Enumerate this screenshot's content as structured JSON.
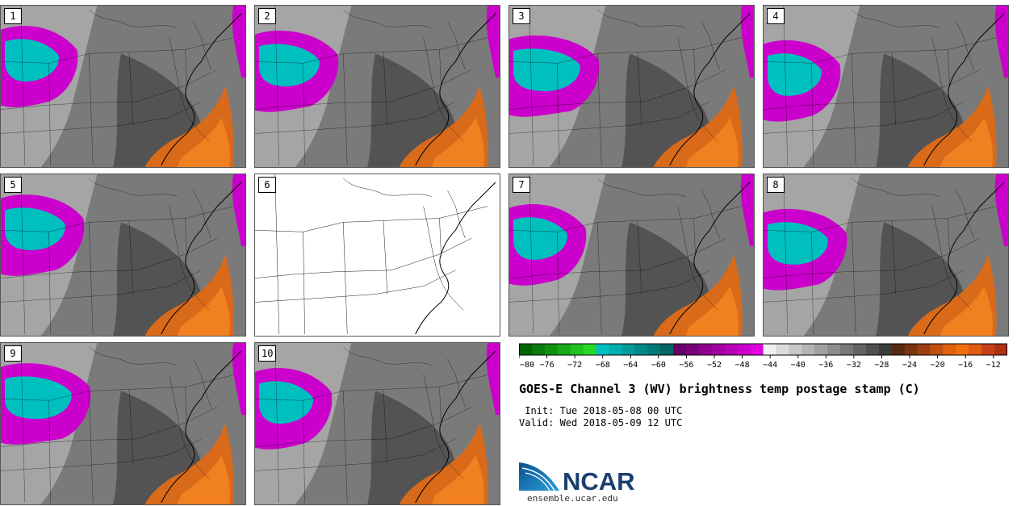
{
  "title": "GOES-E Channel 3 (WV) brightness temp postage stamp (C)",
  "init": " Init: Tue 2018-05-08 00 UTC",
  "valid": "Valid: Wed 2018-05-09 12 UTC",
  "logo_text": "NCAR",
  "logo_url": "ensemble.ucar.edu",
  "panels": [
    {
      "label": "1",
      "has_data": true,
      "icon": "satellite-image"
    },
    {
      "label": "2",
      "has_data": true,
      "icon": "satellite-image"
    },
    {
      "label": "3",
      "has_data": true,
      "icon": "satellite-image"
    },
    {
      "label": "4",
      "has_data": true,
      "icon": "satellite-image"
    },
    {
      "label": "5",
      "has_data": true,
      "icon": "satellite-image"
    },
    {
      "label": "6",
      "has_data": false,
      "icon": "blank-map"
    },
    {
      "label": "7",
      "has_data": true,
      "icon": "satellite-image"
    },
    {
      "label": "8",
      "has_data": true,
      "icon": "satellite-image"
    },
    {
      "label": "9",
      "has_data": true,
      "icon": "satellite-image"
    },
    {
      "label": "10",
      "has_data": true,
      "icon": "satellite-image"
    }
  ],
  "colorbar": {
    "min": -80,
    "max": -10,
    "step": 2,
    "tick_labels": [
      "−80",
      "−76",
      "−72",
      "−68",
      "−64",
      "−60",
      "−56",
      "−52",
      "−48",
      "−44",
      "−40",
      "−36",
      "−32",
      "−28",
      "−24",
      "−20",
      "−16",
      "−12"
    ],
    "tick_values": [
      -80,
      -76,
      -72,
      -68,
      -64,
      -60,
      -56,
      -52,
      -48,
      -44,
      -40,
      -36,
      -32,
      -28,
      -24,
      -20,
      -16,
      -12
    ],
    "colors": [
      "#006400",
      "#0a7a0a",
      "#109010",
      "#18a818",
      "#20c020",
      "#28d828",
      "#00bfbf",
      "#00adad",
      "#009b9b",
      "#008989",
      "#007777",
      "#006565",
      "#660066",
      "#7a007a",
      "#8f008f",
      "#a300a3",
      "#b800b8",
      "#cc00cc",
      "#e000e0",
      "#f0f0f0",
      "#dcdcdc",
      "#c8c8c8",
      "#b4b4b4",
      "#a0a0a0",
      "#8c8c8c",
      "#787878",
      "#646464",
      "#505050",
      "#3c3c3c",
      "#5a2a10",
      "#7a3510",
      "#9a4010",
      "#c05010",
      "#e06010",
      "#f07010",
      "#e05a10",
      "#c8401a",
      "#b03010"
    ]
  },
  "colors": {
    "moist": "#00bfbf",
    "cold": "#cc00cc",
    "dry": "#d86a1a",
    "land": "#7a7a7a"
  }
}
